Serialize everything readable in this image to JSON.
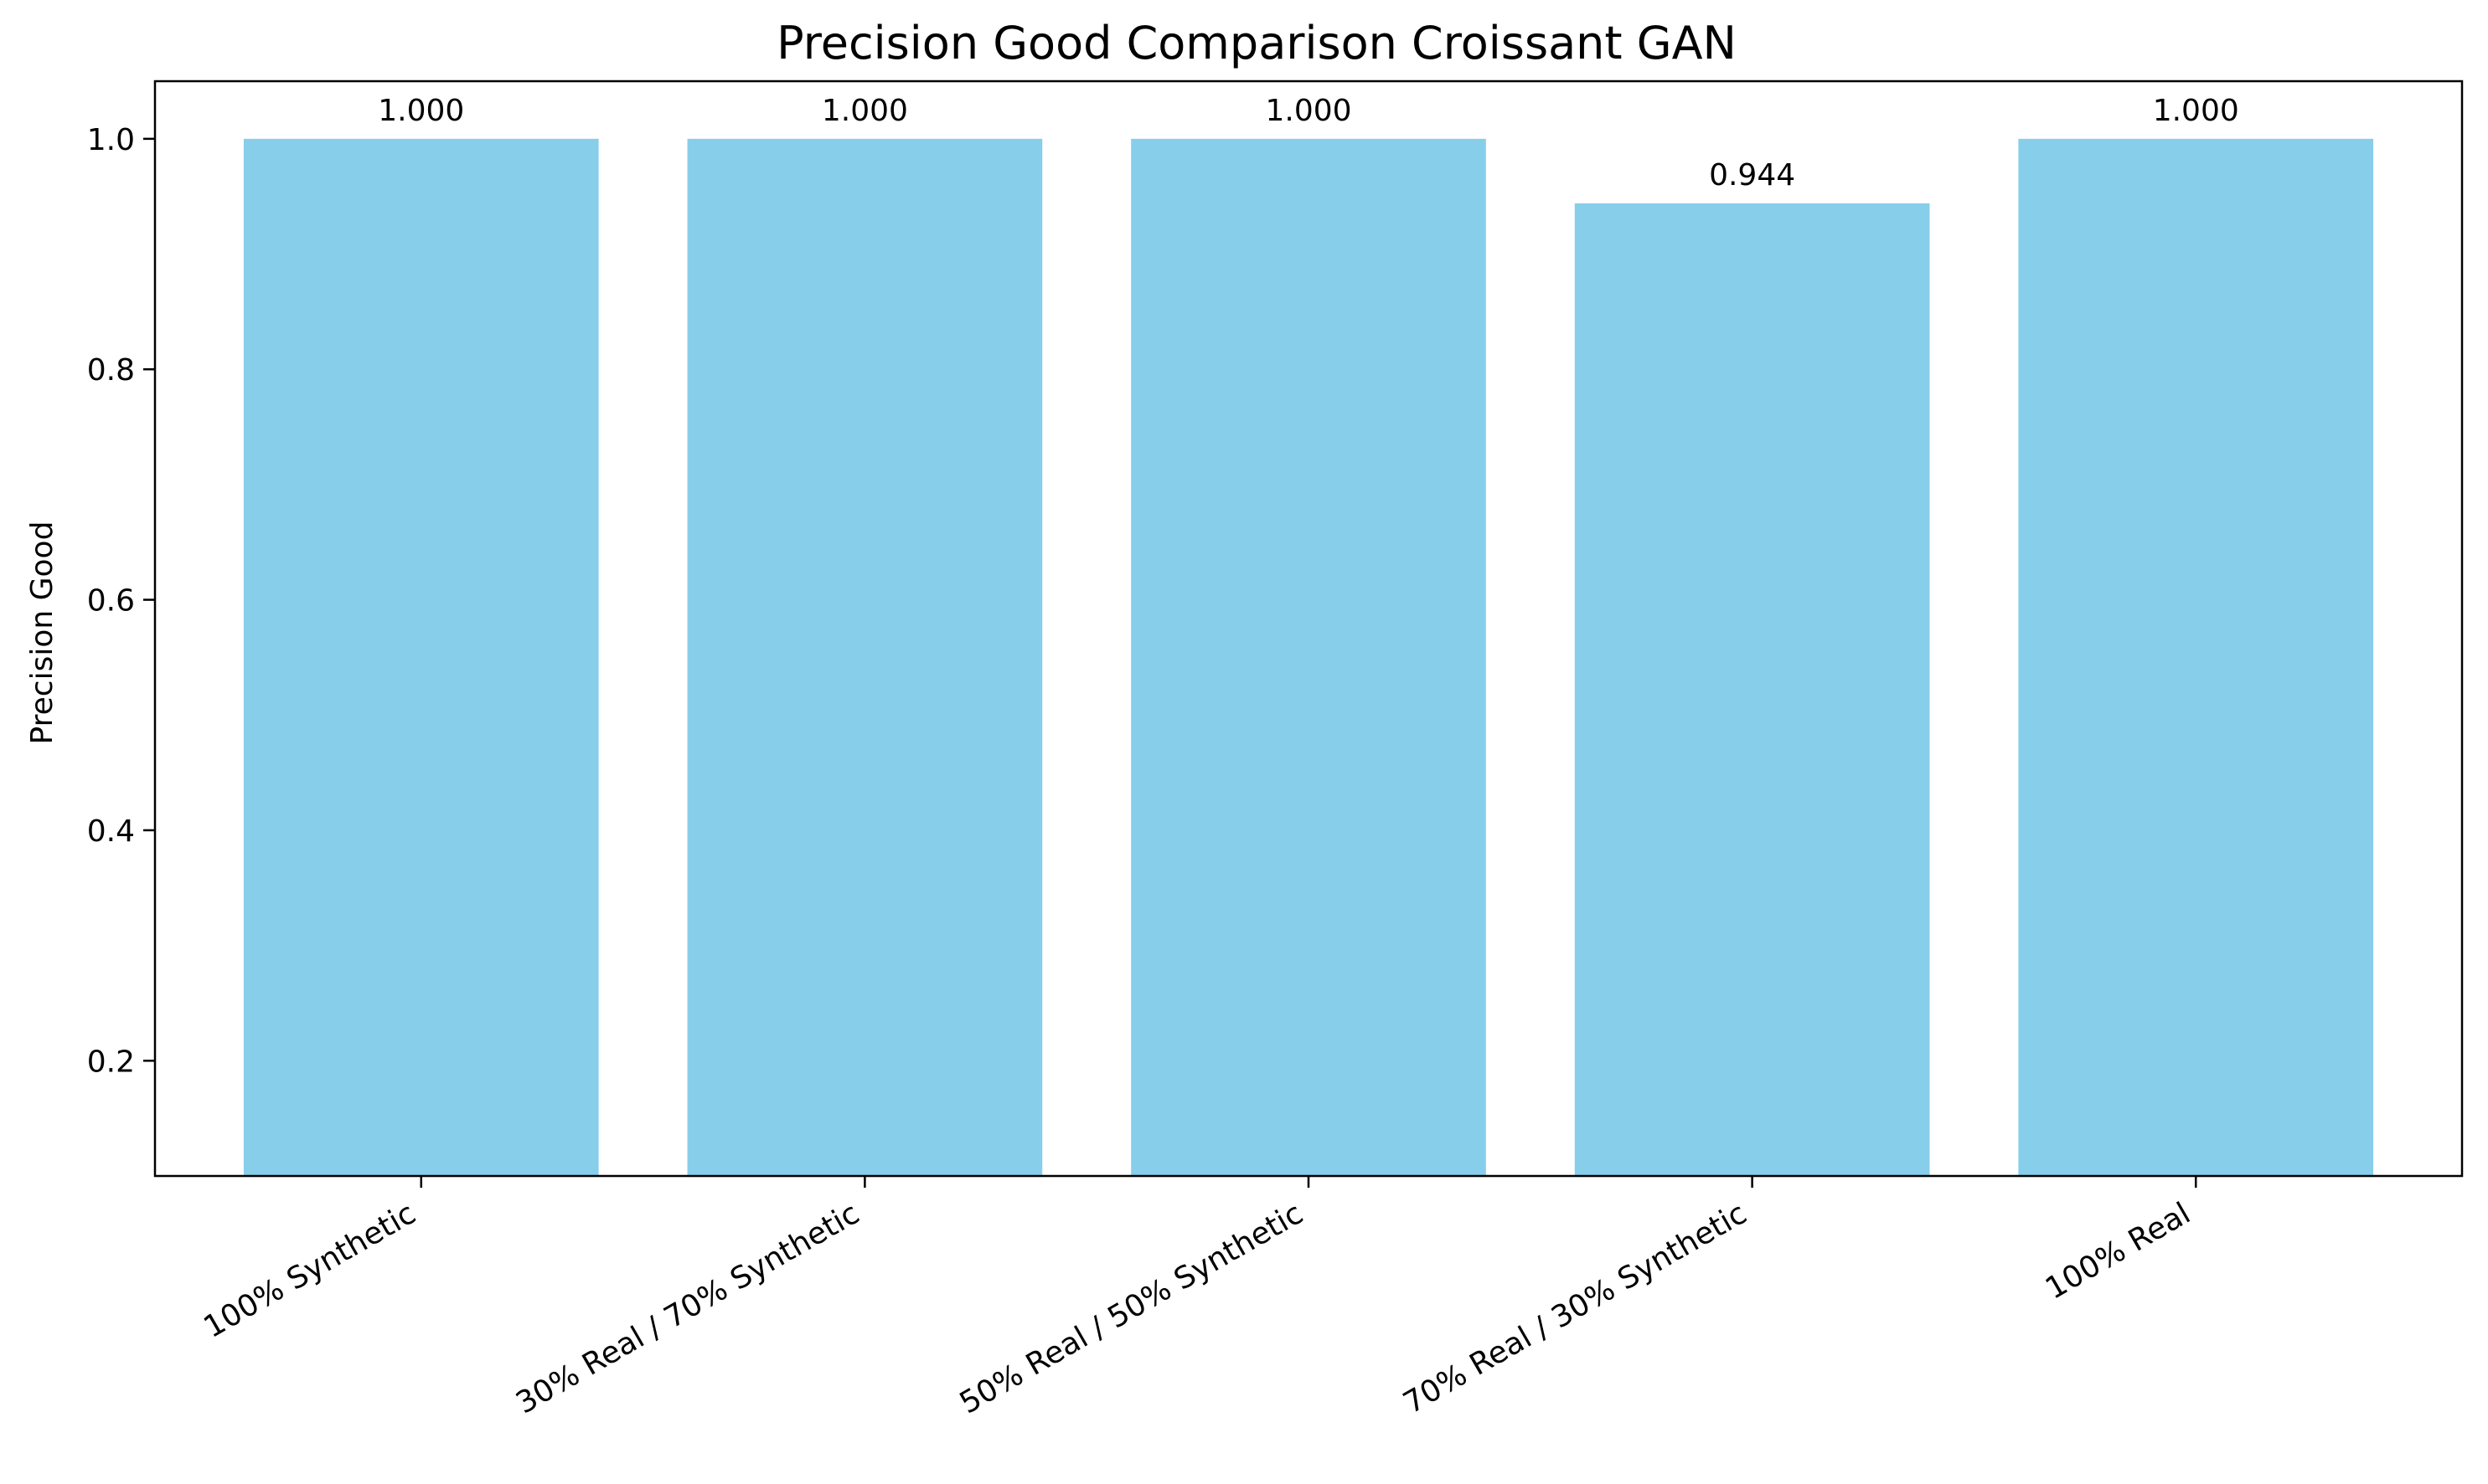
{
  "chart_data": {
    "type": "bar",
    "title": "Precision Good Comparison Croissant GAN",
    "xlabel": "",
    "ylabel": "Precision Good",
    "categories": [
      "100% Synthetic",
      "30% Real / 70% Synthetic",
      "50% Real / 50% Synthetic",
      "70% Real / 30% Synthetic",
      "100% Real"
    ],
    "values": [
      1.0,
      1.0,
      1.0,
      0.944,
      1.0
    ],
    "value_labels": [
      "1.000",
      "1.000",
      "1.000",
      "0.944",
      "1.000"
    ],
    "ylim": [
      0.1,
      1.05
    ],
    "yticks": [
      0.2,
      0.4,
      0.6,
      0.8,
      1.0
    ],
    "ytick_labels": [
      "0.2",
      "0.4",
      "0.6",
      "0.8",
      "1.0"
    ],
    "bar_color": "#87ceeb",
    "grid": false,
    "legend": "none"
  }
}
